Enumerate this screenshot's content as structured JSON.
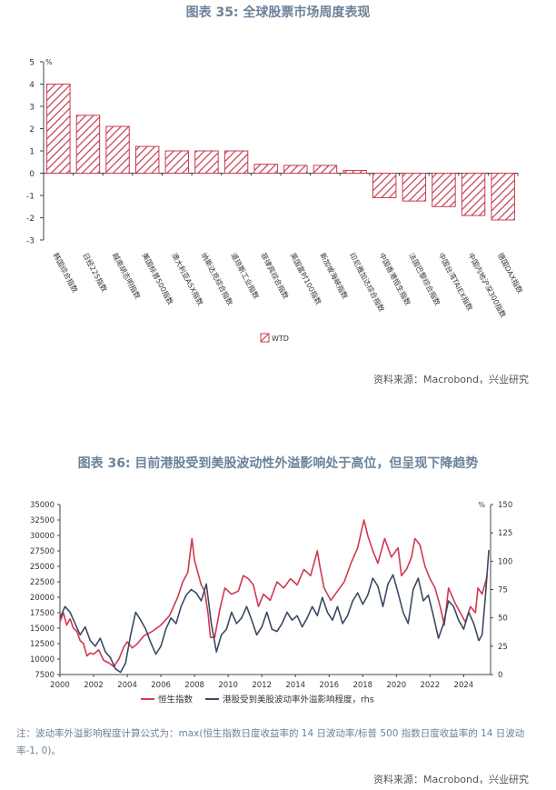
{
  "chart1_title": "图表 35: 全球股票市场周度表现",
  "chart1_source": "资料来源：Macrobond，兴业研究",
  "chart2_title": "图表 36: 目前港股受到美股波动性外溢影响处于高位，但呈现下降趋势",
  "chart2_note": "注：波动率外溢影响程度计算公式为：max(恒生指数日度收益率的 14 日波动率/标普 500 指数日度收益率的 14 日波动率-1, 0)。",
  "chart2_source": "资料来源：Macrobond，兴业研究",
  "chart_data": [
    {
      "type": "bar",
      "ylabel": "%",
      "ylim": [
        -3,
        5
      ],
      "yticks": [
        -3,
        -2,
        -1,
        0,
        1,
        2,
        3,
        4,
        5
      ],
      "categories": [
        "韩国综合指数",
        "日经225指数",
        "越南胡志明指数",
        "美国标普500指数",
        "澳大利亚ASX指数",
        "纳斯达克综合指数",
        "道琼斯工业指数",
        "菲律宾综合指数",
        "英国富时100指数",
        "新加坡海峡指数",
        "印尼雅加达综合指数",
        "中国香港恒生指数",
        "法国巴黎综合指数",
        "中国台湾TAIEX指数",
        "中国内地沪深300指数",
        "德国DAX指数"
      ],
      "series": [
        {
          "name": "WTD",
          "values": [
            4.0,
            2.6,
            2.1,
            1.2,
            1.0,
            1.0,
            1.0,
            0.4,
            0.35,
            0.35,
            0.12,
            -1.1,
            -1.25,
            -1.5,
            -1.9,
            -2.1
          ]
        }
      ],
      "legend_position": "bottom",
      "colors": {
        "stroke": "#c73a4e",
        "hatch": "#c73a4e"
      }
    },
    {
      "type": "line",
      "x_ticks": [
        "2000",
        "2002",
        "2004",
        "2006",
        "2008",
        "2010",
        "2012",
        "2014",
        "2016",
        "2018",
        "2020",
        "2022",
        "2024"
      ],
      "xlim": [
        2000,
        2025.6
      ],
      "left_axis": {
        "ylim": [
          7500,
          35000
        ],
        "ticks": [
          7500,
          10000,
          12500,
          15000,
          17500,
          20000,
          22500,
          25000,
          27500,
          30000,
          32500,
          35000
        ]
      },
      "right_axis": {
        "label": "%",
        "ylim": [
          0,
          150
        ],
        "ticks": [
          0,
          25,
          50,
          75,
          100,
          125,
          150
        ]
      },
      "series": [
        {
          "name": "恒生指数",
          "axis": "left",
          "color": "#d0394f",
          "x": [
            2000.0,
            2000.2,
            2000.4,
            2000.6,
            2000.8,
            2001.0,
            2001.2,
            2001.4,
            2001.6,
            2001.8,
            2002.0,
            2002.3,
            2002.6,
            2002.9,
            2003.2,
            2003.5,
            2003.8,
            2004.0,
            2004.3,
            2004.6,
            2005.0,
            2005.5,
            2006.0,
            2006.5,
            2007.0,
            2007.3,
            2007.6,
            2007.85,
            2008.0,
            2008.2,
            2008.4,
            2008.6,
            2008.8,
            2008.95,
            2009.2,
            2009.5,
            2009.8,
            2010.2,
            2010.6,
            2010.9,
            2011.2,
            2011.5,
            2011.8,
            2012.1,
            2012.5,
            2012.9,
            2013.3,
            2013.7,
            2014.1,
            2014.5,
            2014.9,
            2015.3,
            2015.45,
            2015.7,
            2016.1,
            2016.5,
            2016.9,
            2017.3,
            2017.7,
            2018.07,
            2018.3,
            2018.6,
            2018.9,
            2019.3,
            2019.7,
            2020.1,
            2020.3,
            2020.6,
            2020.9,
            2021.1,
            2021.4,
            2021.7,
            2022.0,
            2022.3,
            2022.6,
            2022.85,
            2023.1,
            2023.5,
            2023.9,
            2024.1,
            2024.4,
            2024.7,
            2024.85,
            2025.1,
            2025.4
          ],
          "y": [
            16000,
            17500,
            15500,
            16500,
            15000,
            14500,
            13000,
            12500,
            10500,
            11000,
            10800,
            11500,
            9800,
            9400,
            8800,
            10000,
            12000,
            12800,
            11800,
            12500,
            13800,
            14500,
            15500,
            17000,
            20000,
            22500,
            24000,
            29500,
            26000,
            24000,
            22000,
            21000,
            17500,
            13500,
            13500,
            18000,
            21500,
            20500,
            21000,
            23500,
            23000,
            22000,
            18500,
            20500,
            19500,
            22500,
            21500,
            23000,
            22000,
            24500,
            23500,
            27500,
            25000,
            21500,
            19500,
            21000,
            22500,
            25500,
            28000,
            32500,
            30000,
            27500,
            25500,
            29500,
            26500,
            28000,
            23500,
            24500,
            26500,
            29500,
            28500,
            25000,
            23000,
            21500,
            18500,
            15500,
            21500,
            19000,
            17000,
            16000,
            18500,
            17500,
            21500,
            20500,
            23500
          ]
        },
        {
          "name": "港股受到美股波动率外溢影响程度，rhs",
          "axis": "right",
          "color": "#3b4a63",
          "x": [
            2000.0,
            2000.3,
            2000.6,
            2000.9,
            2001.2,
            2001.5,
            2001.8,
            2002.1,
            2002.4,
            2002.7,
            2003.0,
            2003.3,
            2003.6,
            2003.9,
            2004.2,
            2004.5,
            2004.8,
            2005.1,
            2005.4,
            2005.7,
            2006.0,
            2006.3,
            2006.6,
            2006.9,
            2007.2,
            2007.5,
            2007.8,
            2008.1,
            2008.4,
            2008.7,
            2009.0,
            2009.3,
            2009.6,
            2009.9,
            2010.2,
            2010.5,
            2010.8,
            2011.1,
            2011.4,
            2011.7,
            2012.0,
            2012.3,
            2012.6,
            2012.9,
            2013.2,
            2013.5,
            2013.8,
            2014.1,
            2014.4,
            2014.7,
            2015.0,
            2015.3,
            2015.6,
            2015.9,
            2016.2,
            2016.5,
            2016.8,
            2017.1,
            2017.4,
            2017.7,
            2018.0,
            2018.3,
            2018.6,
            2018.9,
            2019.2,
            2019.5,
            2019.8,
            2020.1,
            2020.4,
            2020.7,
            2021.0,
            2021.3,
            2021.6,
            2021.9,
            2022.2,
            2022.5,
            2022.8,
            2023.1,
            2023.4,
            2023.7,
            2024.0,
            2024.3,
            2024.6,
            2024.9,
            2025.1,
            2025.3,
            2025.5
          ],
          "y": [
            50,
            60,
            55,
            45,
            35,
            42,
            30,
            25,
            32,
            20,
            15,
            5,
            2,
            10,
            35,
            55,
            48,
            40,
            28,
            18,
            25,
            40,
            50,
            45,
            60,
            70,
            75,
            72,
            65,
            80,
            45,
            20,
            35,
            40,
            55,
            45,
            50,
            60,
            48,
            35,
            42,
            55,
            40,
            38,
            45,
            55,
            48,
            52,
            42,
            50,
            60,
            52,
            68,
            55,
            48,
            60,
            45,
            52,
            65,
            72,
            62,
            70,
            85,
            78,
            60,
            80,
            88,
            72,
            55,
            45,
            75,
            85,
            65,
            70,
            52,
            32,
            45,
            65,
            60,
            48,
            40,
            55,
            45,
            30,
            35,
            70,
            110
          ]
        }
      ],
      "legend_position": "bottom"
    }
  ]
}
